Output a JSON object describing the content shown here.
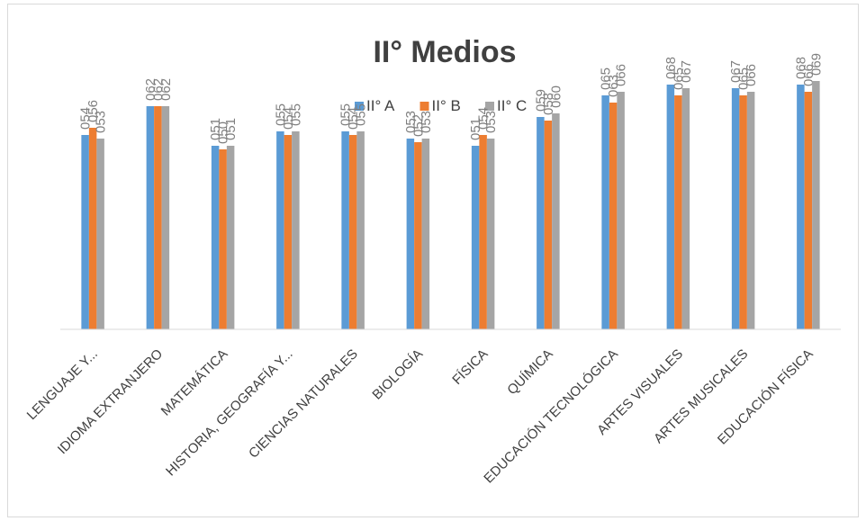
{
  "chart_data": {
    "type": "bar",
    "title": "II° Medios",
    "categories": [
      "LENGUAJE Y...",
      "IDIOMA EXTRANJERO",
      "MATEMÁTICA",
      "HISTORIA, GEOGRAFÍA Y...",
      "CIENCIAS NATURALES",
      "BIOLOGÍA",
      "FÍSICA",
      "QUÍMICA",
      "EDUCACIÓN TECNOLÓGICA",
      "ARTES VISUALES",
      "ARTES MUSICALES",
      "EDUCACIÓN FÍSICA"
    ],
    "series": [
      {
        "name": "II° A",
        "color": "#5b9bd5",
        "values": [
          54,
          62,
          51,
          55,
          55,
          53,
          51,
          59,
          65,
          68,
          67,
          68
        ],
        "labels": [
          "054",
          "062",
          "051",
          "055",
          "055",
          "053",
          "051",
          "059",
          "065",
          "068",
          "067",
          "068"
        ]
      },
      {
        "name": "II° B",
        "color": "#ed7d31",
        "values": [
          56,
          62,
          50,
          54,
          54,
          52,
          54,
          58,
          63,
          65,
          65,
          66
        ],
        "labels": [
          "056",
          "062",
          "050",
          "054",
          "054",
          "052",
          "054",
          "058",
          "063",
          "065",
          "065",
          "066"
        ]
      },
      {
        "name": "II° C",
        "color": "#a5a5a5",
        "values": [
          53,
          62,
          51,
          55,
          55,
          53,
          53,
          60,
          66,
          67,
          66,
          69
        ],
        "labels": [
          "053",
          "062",
          "051",
          "055",
          "055",
          "053",
          "053",
          "060",
          "066",
          "067",
          "066",
          "069"
        ]
      }
    ],
    "ylim": [
      0,
      100
    ],
    "grid": false,
    "legend_position": "top"
  }
}
